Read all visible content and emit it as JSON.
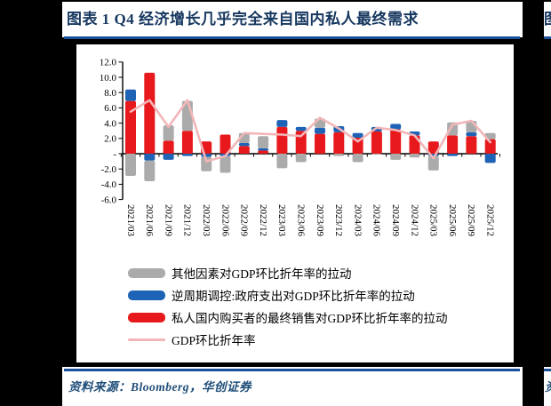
{
  "page": {
    "background_color": "#000000",
    "accent_blue": "#1a4f9c"
  },
  "figure": {
    "title": "图表 1  Q4 经济增长几乎完全来自国内私人最终需求",
    "source_label": "资料来源：Bloomberg，华创证券",
    "right_title_fragment": "图",
    "right_source_fragment": "资"
  },
  "chart_data": {
    "type": "bar",
    "stacked": true,
    "grid": false,
    "legend_position": "bottom-left",
    "categories": [
      "2021/03",
      "2021/06",
      "2021/09",
      "2021/12",
      "2022/03",
      "2022/06",
      "2022/09",
      "2022/12",
      "2023/03",
      "2023/06",
      "2023/09",
      "2023/12",
      "2024/03",
      "2024/06",
      "2024/09",
      "2024/12",
      "2025/03",
      "2025/06",
      "2025/09",
      "2025/12"
    ],
    "series": [
      {
        "name": "其他因素对GDP环比折年率的拉动",
        "color": "#ababab",
        "values": [
          -2.9,
          -2.7,
          2.0,
          3.9,
          -1.9,
          -2.2,
          1.3,
          1.6,
          -1.9,
          -1.1,
          1.2,
          -0.3,
          -1.1,
          -0.1,
          -0.8,
          -0.5,
          -1.9,
          1.7,
          1.5,
          0.8
        ]
      },
      {
        "name": "逆周期调控:政府支出对GDP环比折年率的拉动",
        "color": "#1e63b5",
        "values": [
          1.5,
          -0.9,
          -0.8,
          -0.3,
          -0.4,
          -0.3,
          0.4,
          0.3,
          0.9,
          0.5,
          0.8,
          0.8,
          0.6,
          0.6,
          0.7,
          0.5,
          -0.3,
          -0.3,
          0.5,
          -1.2
        ]
      },
      {
        "name": "私人国内购买者的最终销售对GDP环比折年率的拉动",
        "color": "#e8191c",
        "values": [
          6.9,
          10.6,
          1.7,
          3.0,
          1.6,
          2.5,
          1.0,
          0.4,
          3.5,
          3.0,
          2.6,
          2.8,
          2.1,
          2.9,
          3.2,
          2.4,
          1.6,
          2.4,
          2.3,
          1.9
        ]
      },
      {
        "name": "GDP环比折年率",
        "type": "line",
        "color": "#f2b6b8",
        "values": [
          5.5,
          7.0,
          3.5,
          7.0,
          -1.0,
          -0.3,
          2.7,
          2.6,
          2.5,
          2.3,
          4.7,
          3.3,
          1.6,
          3.4,
          3.1,
          2.4,
          -0.6,
          3.8,
          4.3,
          1.5
        ]
      }
    ],
    "ylim": [
      -6,
      12
    ],
    "ytick_values": [
      12,
      10,
      8,
      6,
      4,
      2,
      0,
      -2,
      -4,
      -6
    ],
    "ytick_labels": [
      "12.0",
      "10.0",
      "8.0",
      "6.0",
      "4.0",
      "2.0",
      "-",
      "-2.0",
      "-4.0",
      "-6.0"
    ],
    "xlabel": "",
    "ylabel": ""
  }
}
